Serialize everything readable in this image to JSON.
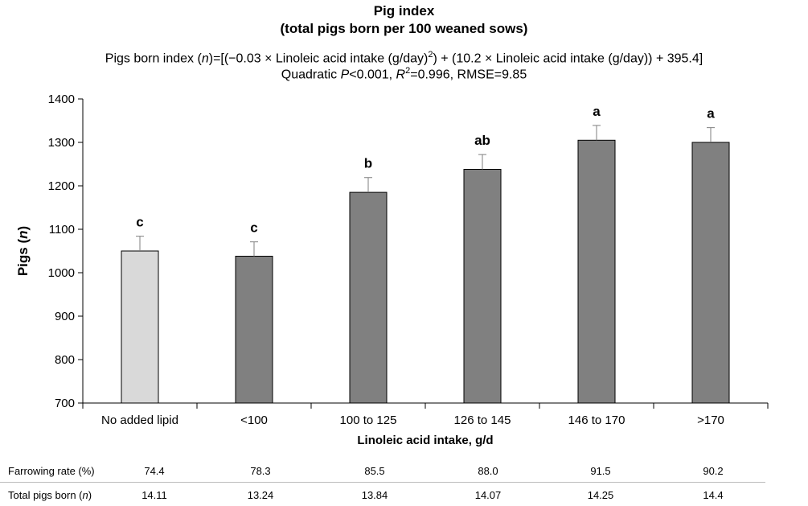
{
  "titles": {
    "line1": "Pig index",
    "line2": "(total pigs born per 100 weaned sows)"
  },
  "equation": {
    "pre": "Pigs born index (",
    "var": "n",
    "mid1": ")=[(−0.03 × Linoleic acid intake (g/day)",
    "sup": "2",
    "mid2": ") + (10.2 × Linoleic acid intake (g/day)) + 395.4]",
    "stat_pre": "Quadratic ",
    "stat_p": "P",
    "stat_mid": "<0.001, ",
    "stat_r": "R",
    "stat_sup": "2",
    "stat_post": "=0.996, RMSE=9.85"
  },
  "chart_data": {
    "type": "bar",
    "categories": [
      "No added lipid",
      "<100",
      "100 to 125",
      "126 to 145",
      "146 to 170",
      ">170"
    ],
    "values": [
      1050,
      1038,
      1185,
      1238,
      1305,
      1300
    ],
    "errors": [
      34,
      33,
      34,
      34,
      34,
      34
    ],
    "significance_letters": [
      "c",
      "c",
      "b",
      "ab",
      "a",
      "a"
    ],
    "bar_colors": [
      "#d9d9d9",
      "#808080",
      "#808080",
      "#808080",
      "#808080",
      "#808080"
    ],
    "ylim": [
      700,
      1400
    ],
    "yticks": [
      700,
      800,
      900,
      1000,
      1100,
      1200,
      1300,
      1400
    ],
    "xlabel": "Linoleic acid intake, g/d",
    "ylabel_main": "Pigs (",
    "ylabel_var": "n",
    "ylabel_end": ")",
    "grid": false,
    "legend": "none"
  },
  "table": {
    "rows": [
      {
        "label": "Farrowing rate (%)",
        "label_italic": "",
        "label_end": "",
        "values": [
          "74.4",
          "78.3",
          "85.5",
          "88.0",
          "91.5",
          "90.2"
        ]
      },
      {
        "label": "Total pigs born (",
        "label_italic": "n",
        "label_end": ")",
        "values": [
          "14.11",
          "13.24",
          "13.84",
          "14.07",
          "14.25",
          "14.4"
        ]
      }
    ]
  }
}
